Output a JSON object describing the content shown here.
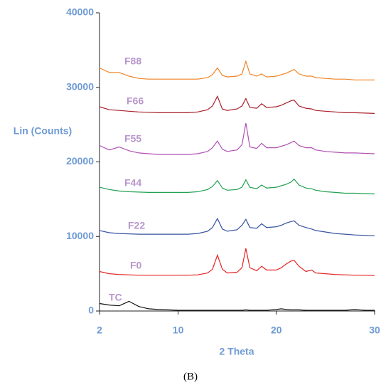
{
  "chart_data": {
    "type": "line",
    "caption": "(B)",
    "y_label": "Lin (Counts)",
    "x_label": "2 Theta",
    "xlim": [
      2,
      30
    ],
    "xticks": [
      2,
      10,
      20,
      30
    ],
    "ylim": [
      0,
      40000
    ],
    "yticks": [
      0,
      10000,
      20000,
      30000,
      40000
    ],
    "grid": false,
    "x": [
      2,
      3,
      4,
      5,
      6,
      7,
      8,
      9,
      10,
      11,
      12,
      13,
      13.5,
      14,
      14.5,
      15,
      16,
      16.5,
      16.9,
      17.3,
      18,
      18.5,
      19,
      20,
      20.5,
      21,
      21.5,
      21.8,
      22.3,
      23,
      23.6,
      24,
      25,
      26,
      27,
      28,
      29,
      30
    ],
    "series": [
      {
        "name": "F88",
        "color": "#f08424",
        "values": [
          32600,
          32000,
          32000,
          31500,
          31200,
          31100,
          31100,
          31100,
          31100,
          31100,
          31100,
          31300,
          31700,
          32600,
          31600,
          31400,
          31500,
          31800,
          33500,
          31800,
          31500,
          31800,
          31400,
          31500,
          31700,
          31900,
          32200,
          32400,
          31800,
          31500,
          31500,
          31300,
          31200,
          31100,
          31100,
          31000,
          31000,
          31000
        ]
      },
      {
        "name": "F66",
        "color": "#a8202c",
        "values": [
          27400,
          27000,
          26900,
          26800,
          26700,
          26650,
          26600,
          26600,
          26600,
          26600,
          26700,
          27000,
          27500,
          28800,
          27100,
          26900,
          27100,
          27500,
          28500,
          27300,
          27200,
          27800,
          27300,
          27400,
          27600,
          27900,
          28200,
          28300,
          27500,
          27200,
          27100,
          26900,
          26800,
          26700,
          26600,
          26600,
          26550,
          26500
        ]
      },
      {
        "name": "F55",
        "color": "#b050b4",
        "values": [
          22200,
          21600,
          22000,
          21500,
          21200,
          21100,
          21000,
          21000,
          21000,
          21000,
          21100,
          21400,
          21900,
          22800,
          21700,
          21400,
          21600,
          22300,
          25200,
          22000,
          21800,
          22500,
          21900,
          21900,
          22100,
          22300,
          22600,
          22800,
          22200,
          21900,
          21900,
          21600,
          21400,
          21300,
          21200,
          21200,
          21150,
          21100
        ]
      },
      {
        "name": "F44",
        "color": "#20a050",
        "values": [
          16600,
          16300,
          16100,
          16000,
          15950,
          15900,
          15900,
          15900,
          15900,
          15900,
          16000,
          16300,
          16700,
          17500,
          16500,
          16200,
          16300,
          16600,
          17600,
          16600,
          16400,
          16900,
          16500,
          16600,
          16800,
          17000,
          17300,
          17700,
          16900,
          16500,
          16400,
          16200,
          16000,
          15900,
          15800,
          15800,
          15750,
          15700
        ]
      },
      {
        "name": "F22",
        "color": "#3552a0",
        "values": [
          10800,
          10500,
          10400,
          10350,
          10300,
          10300,
          10300,
          10300,
          10300,
          10300,
          10400,
          10700,
          11200,
          12400,
          11000,
          10700,
          10900,
          11500,
          12300,
          11200,
          11100,
          11700,
          11200,
          11300,
          11500,
          11800,
          12000,
          12100,
          11500,
          11200,
          11000,
          10800,
          10600,
          10400,
          10300,
          10200,
          10150,
          10100
        ]
      },
      {
        "name": "F0",
        "color": "#e42424",
        "values": [
          5300,
          5000,
          4900,
          4850,
          4800,
          4800,
          4800,
          4800,
          4800,
          4800,
          4850,
          5100,
          5600,
          7500,
          5600,
          5100,
          5200,
          5800,
          8400,
          5800,
          5400,
          6000,
          5500,
          5500,
          5800,
          6300,
          6700,
          6800,
          6000,
          5300,
          5500,
          5100,
          5000,
          4900,
          4850,
          4800,
          4800,
          4750
        ]
      },
      {
        "name": "TC",
        "color": "#111111",
        "values": [
          1000,
          800,
          700,
          1300,
          600,
          300,
          200,
          150,
          100,
          100,
          100,
          100,
          100,
          100,
          100,
          100,
          100,
          100,
          150,
          100,
          100,
          100,
          100,
          200,
          300,
          200,
          150,
          150,
          150,
          100,
          100,
          100,
          100,
          100,
          100,
          200,
          100,
          100
        ]
      }
    ]
  }
}
